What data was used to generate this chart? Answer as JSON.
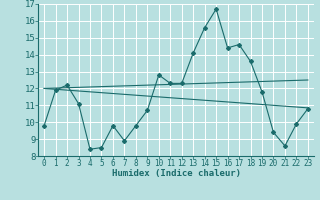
{
  "xlabel": "Humidex (Indice chaleur)",
  "xlim": [
    -0.5,
    23.5
  ],
  "ylim": [
    8,
    17
  ],
  "yticks": [
    8,
    9,
    10,
    11,
    12,
    13,
    14,
    15,
    16,
    17
  ],
  "xticks": [
    0,
    1,
    2,
    3,
    4,
    5,
    6,
    7,
    8,
    9,
    10,
    11,
    12,
    13,
    14,
    15,
    16,
    17,
    18,
    19,
    20,
    21,
    22,
    23
  ],
  "bg_color": "#b8e0e0",
  "grid_color": "#ffffff",
  "line_color": "#1a6b6b",
  "line1_x": [
    0,
    1,
    2,
    3,
    4,
    5,
    6,
    7,
    8,
    9,
    10,
    11,
    12,
    13,
    14,
    15,
    16,
    17,
    18,
    19,
    20,
    21,
    22,
    23
  ],
  "line1_y": [
    9.8,
    11.9,
    12.2,
    11.1,
    8.4,
    8.5,
    9.8,
    8.9,
    9.8,
    10.7,
    12.8,
    12.3,
    12.3,
    14.1,
    15.6,
    16.7,
    14.4,
    14.6,
    13.6,
    11.8,
    9.4,
    8.6,
    9.9,
    10.8
  ],
  "line2_x": [
    0,
    23
  ],
  "line2_y": [
    12.0,
    12.5
  ],
  "line3_x": [
    0,
    23
  ],
  "line3_y": [
    12.0,
    10.85
  ]
}
